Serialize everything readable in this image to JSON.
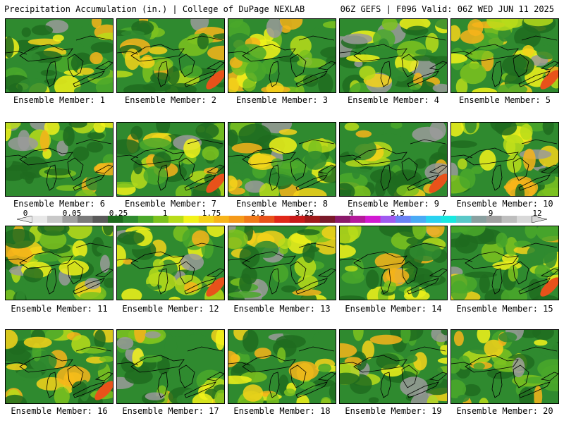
{
  "header": {
    "title": "Precipitation Accumulation (in.) | College of DuPage NEXLAB",
    "valid": "06Z GEFS | F096 Valid: 06Z WED JUN 11 2025"
  },
  "panels": [
    {
      "label": "Ensemble Member: 1"
    },
    {
      "label": "Ensemble Member: 2"
    },
    {
      "label": "Ensemble Member: 3"
    },
    {
      "label": "Ensemble Member: 4"
    },
    {
      "label": "Ensemble Member: 5"
    },
    {
      "label": "Ensemble Member: 6"
    },
    {
      "label": "Ensemble Member: 7"
    },
    {
      "label": "Ensemble Member: 8"
    },
    {
      "label": "Ensemble Member: 9"
    },
    {
      "label": "Ensemble Member: 10"
    },
    {
      "label": "Ensemble Member: 11"
    },
    {
      "label": "Ensemble Member: 12"
    },
    {
      "label": "Ensemble Member: 13"
    },
    {
      "label": "Ensemble Member: 14"
    },
    {
      "label": "Ensemble Member: 15"
    },
    {
      "label": "Ensemble Member: 16"
    },
    {
      "label": "Ensemble Member: 17"
    },
    {
      "label": "Ensemble Member: 18"
    },
    {
      "label": "Ensemble Member: 19"
    },
    {
      "label": "Ensemble Member: 20"
    }
  ],
  "colorbar": {
    "labels": [
      "0",
      "0.05",
      "0.25",
      "1",
      "1.75",
      "2.5",
      "3.25",
      "4",
      "5.5",
      "7",
      "9",
      "12"
    ],
    "colors": [
      "#e8e8e8",
      "#c8c8c8",
      "#a0a0a0",
      "#7a7a7a",
      "#5a5a5a",
      "#1e6b1e",
      "#2f8a2f",
      "#4aa82a",
      "#7cc21e",
      "#b8dc1a",
      "#f2f21a",
      "#f5d21a",
      "#f7b41a",
      "#f59a1a",
      "#f07a1a",
      "#e8521a",
      "#e0281a",
      "#c81a1a",
      "#a01a1a",
      "#7a1a2a",
      "#8a1a6a",
      "#b41a9a",
      "#d21ad2",
      "#a05af0",
      "#6a82f5",
      "#4aaaf5",
      "#2ad2f0",
      "#1ae8e0",
      "#5ac8c8",
      "#8aa0a0",
      "#a0a0a0",
      "#bebebe",
      "#d8d8d8"
    ]
  }
}
